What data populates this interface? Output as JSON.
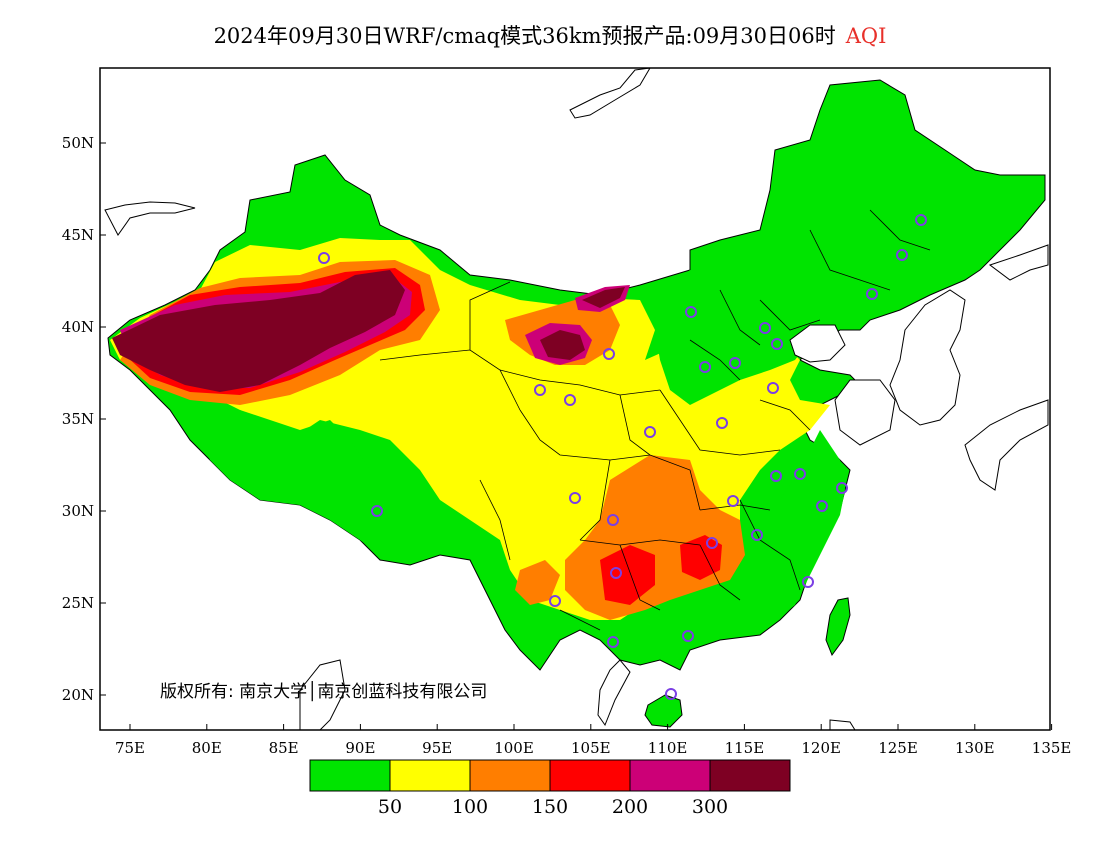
{
  "header": {
    "title": "2024年09月30日WRF/cmaq模式36km预报产品:09月30日06时",
    "variable": "AQI"
  },
  "map": {
    "lon_labels": [
      "75E",
      "80E",
      "85E",
      "90E",
      "95E",
      "100E",
      "105E",
      "110E",
      "115E",
      "120E",
      "125E",
      "130E",
      "135E"
    ],
    "lat_labels": [
      "50N",
      "45N",
      "40N",
      "35N",
      "30N",
      "25N",
      "20N"
    ],
    "copyright": "版权所有: 南京大学│南京创蓝科技有限公司",
    "region_colors": {
      "ocean": "#ffffff",
      "aqi_0_50": "#00e400",
      "aqi_50_100": "#ffff00",
      "aqi_100_150": "#ff7e00",
      "aqi_150_200": "#ff0000",
      "aqi_200_300": "#cc0077",
      "aqi_300_plus": "#7e0023"
    },
    "station_marker": "purple-circle"
  },
  "legend": {
    "colors": [
      "#00e400",
      "#ffff00",
      "#ff7e00",
      "#ff0000",
      "#cc0077",
      "#7e0023"
    ],
    "labels": [
      "50",
      "100",
      "150",
      "200",
      "300"
    ]
  }
}
